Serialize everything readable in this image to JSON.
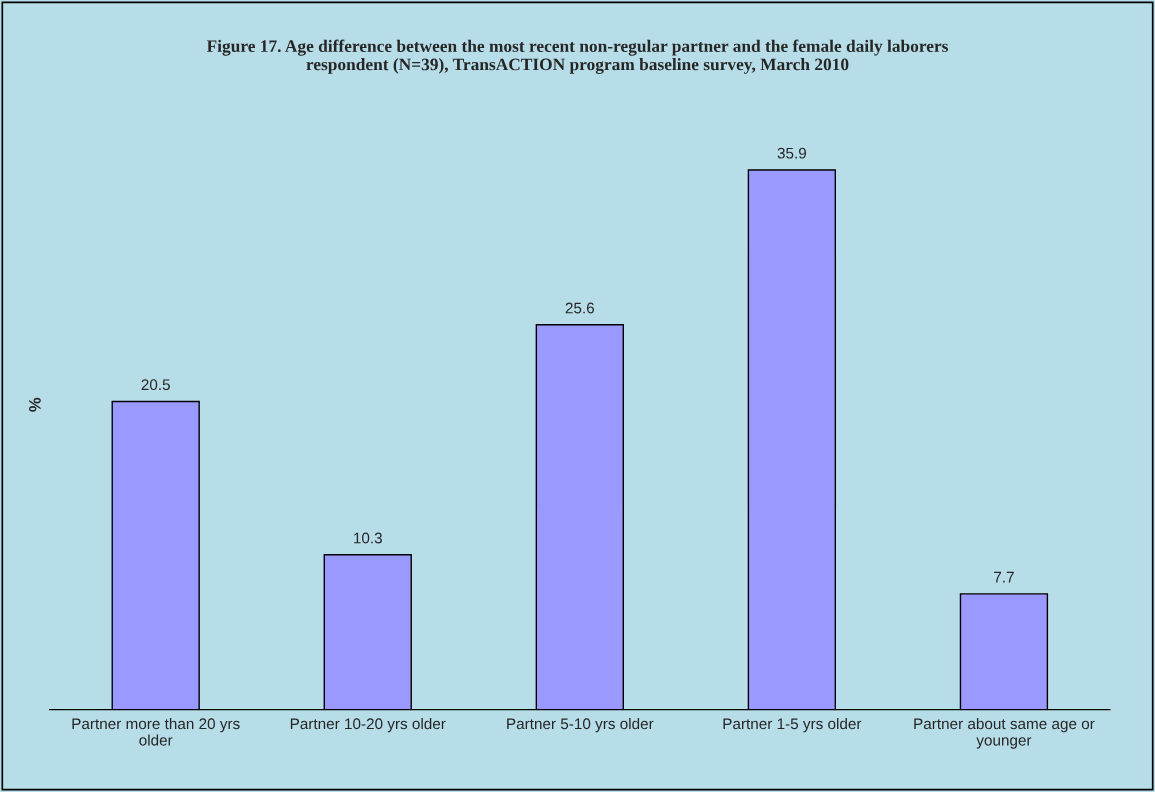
{
  "chart_data": {
    "type": "bar",
    "title": "Figure 17. Age difference between the most recent non-regular partner and the female daily laborers\nrespondent (N=39), TransACTION program baseline survey, March 2010",
    "ylabel": "%",
    "categories": [
      "Partner more than 20 yrs\nolder",
      "Partner 10-20 yrs older",
      "Partner 5-10 yrs older",
      "Partner 1-5 yrs older",
      "Partner about same age or\nyounger"
    ],
    "values": [
      20.5,
      10.3,
      25.6,
      35.9,
      7.7
    ],
    "color": "#9999ff",
    "data_labels": true,
    "grid": false,
    "legend": false
  }
}
